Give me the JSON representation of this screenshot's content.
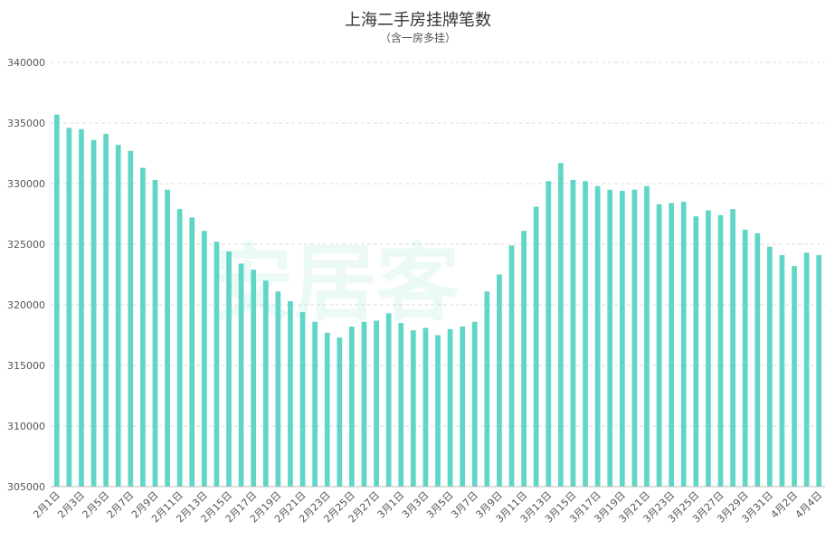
{
  "chart_data": {
    "type": "bar",
    "title": "上海二手房挂牌笔数",
    "subtitle": "（含一房多挂）",
    "watermark": "安居客",
    "bar_color": "#5fd6c6",
    "ylim": [
      305000,
      340000
    ],
    "yticks": [
      305000,
      310000,
      315000,
      320000,
      325000,
      330000,
      335000,
      340000
    ],
    "grid": true,
    "categories": [
      "2月1日",
      "2月2日",
      "2月3日",
      "2月4日",
      "2月5日",
      "2月6日",
      "2月7日",
      "2月8日",
      "2月9日",
      "2月10日",
      "2月11日",
      "2月12日",
      "2月13日",
      "2月14日",
      "2月15日",
      "2月16日",
      "2月17日",
      "2月18日",
      "2月19日",
      "2月20日",
      "2月21日",
      "2月22日",
      "2月23日",
      "2月24日",
      "2月25日",
      "2月26日",
      "2月27日",
      "2月28日",
      "3月1日",
      "3月2日",
      "3月3日",
      "3月4日",
      "3月5日",
      "3月6日",
      "3月7日",
      "3月8日",
      "3月9日",
      "3月10日",
      "3月11日",
      "3月12日",
      "3月13日",
      "3月14日",
      "3月15日",
      "3月16日",
      "3月17日",
      "3月18日",
      "3月19日",
      "3月20日",
      "3月21日",
      "3月22日",
      "3月23日",
      "3月24日",
      "3月25日",
      "3月26日",
      "3月27日",
      "3月28日",
      "3月29日",
      "3月30日",
      "3月31日",
      "4月1日",
      "4月2日",
      "4月3日",
      "4月4日"
    ],
    "xtick_labels": [
      "2月1日",
      "2月3日",
      "2月5日",
      "2月7日",
      "2月9日",
      "2月11日",
      "2月13日",
      "2月15日",
      "2月17日",
      "2月19日",
      "2月21日",
      "2月23日",
      "2月25日",
      "2月27日",
      "3月1日",
      "3月3日",
      "3月5日",
      "3月7日",
      "3月9日",
      "3月11日",
      "3月13日",
      "3月15日",
      "3月17日",
      "3月19日",
      "3月21日",
      "3月23日",
      "3月25日",
      "3月27日",
      "3月29日",
      "3月31日",
      "4月2日",
      "4月4日"
    ],
    "values": [
      335700,
      334600,
      334500,
      333600,
      334100,
      333200,
      332700,
      331300,
      330300,
      329500,
      327900,
      327200,
      326100,
      325200,
      324400,
      323400,
      322900,
      322000,
      321100,
      320300,
      319400,
      318600,
      317700,
      317300,
      318200,
      318600,
      318700,
      319300,
      318500,
      317900,
      318100,
      317500,
      318000,
      318200,
      318600,
      321100,
      322500,
      324900,
      326100,
      328100,
      330200,
      331700,
      330300,
      330200,
      329800,
      329500,
      329400,
      329500,
      329800,
      328300,
      328400,
      328500,
      327300,
      327800,
      327400,
      327900,
      326200,
      325900,
      324800,
      324100,
      323200,
      324300,
      324100
    ]
  }
}
